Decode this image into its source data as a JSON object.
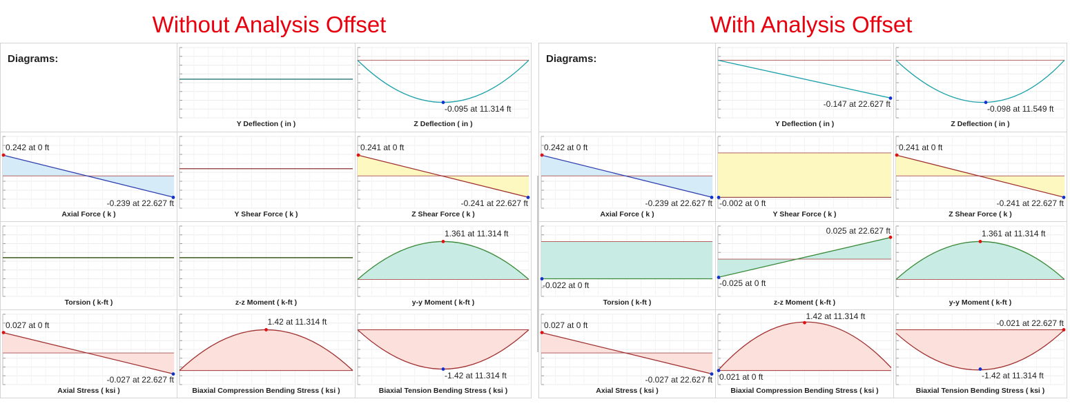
{
  "headings": {
    "left": "Without Analysis Offset",
    "right": "With Analysis Offset"
  },
  "panels": {
    "left": {
      "title": "Diagrams:",
      "cells": [
        {
          "caption": "Y Deflection ( in )",
          "type": "flat",
          "baseline": 0.5,
          "lineColor": "#3a7f7f",
          "labels": []
        },
        {
          "caption": "Z Deflection ( in )",
          "type": "curveDown",
          "lineColor": "#1aa0a8",
          "fill": "",
          "baselineColor": "#b06060",
          "labels": [
            {
              "text": "-0.095 at 11.314 ft",
              "pos": "min"
            }
          ]
        },
        {
          "caption": "Axial Force ( k )",
          "type": "linear",
          "y0": 0.242,
          "y1": -0.239,
          "lineColor": "#3040b0",
          "fill": "#d6ebf8",
          "baselineColor": "#b06060",
          "labels": [
            {
              "text": "0.242 at 0 ft",
              "pos": "startTop"
            },
            {
              "text": "-0.239 at 22.627 ft",
              "pos": "endBottom"
            }
          ]
        },
        {
          "caption": "Y Shear Force ( k )",
          "type": "flat",
          "baseline": 0.5,
          "lineColor": "#a05050",
          "labels": []
        },
        {
          "caption": "Z Shear Force ( k )",
          "type": "linear",
          "y0": 0.241,
          "y1": -0.241,
          "lineColor": "#a03030",
          "fill": "#fdf8c0",
          "baselineColor": "#b06060",
          "labels": [
            {
              "text": "0.241 at 0 ft",
              "pos": "startTop"
            },
            {
              "text": "-0.241 at 22.627 ft",
              "pos": "endBottom"
            }
          ]
        },
        {
          "caption": "Torsion ( k-ft )",
          "type": "flat",
          "baseline": 0.5,
          "lineColor": "#3a5a1a",
          "labels": []
        },
        {
          "caption": "z-z Moment ( k-ft )",
          "type": "flat",
          "baseline": 0.5,
          "lineColor": "#3a5a1a",
          "labels": []
        },
        {
          "caption": "y-y Moment ( k-ft )",
          "type": "arcUp",
          "lineColor": "#3a8a3a",
          "fill": "#c8ebe4",
          "baselineColor": "#b06060",
          "labels": [
            {
              "text": "1.361 at 11.314 ft",
              "pos": "maxTop"
            }
          ]
        },
        {
          "caption": "Axial Stress ( ksi )",
          "type": "linear",
          "y0": 0.027,
          "y1": -0.027,
          "lineColor": "#a03030",
          "fill": "#fbe0dc",
          "baselineColor": "#b06060",
          "labels": [
            {
              "text": "0.027 at 0 ft",
              "pos": "startTop"
            },
            {
              "text": "-0.027 at 22.627 ft",
              "pos": "endBottom"
            }
          ]
        },
        {
          "caption": "Biaxial Compression Bending Stress ( ksi )",
          "type": "arcUpBase",
          "lineColor": "#a03030",
          "fill": "#fbe0dc",
          "baselineColor": "#a03030",
          "labels": [
            {
              "text": "1.42 at 11.314 ft",
              "pos": "maxTop"
            }
          ]
        },
        {
          "caption": "Biaxial Tension Bending Stress ( ksi )",
          "type": "arcDownTop",
          "lineColor": "#a03030",
          "fill": "#fbe0dc",
          "baselineColor": "#a03030",
          "labels": [
            {
              "text": "-1.42 at 11.314 ft",
              "pos": "min"
            }
          ]
        }
      ]
    },
    "right": {
      "title": "Diagrams:",
      "cells": [
        {
          "caption": "Y Deflection ( in )",
          "type": "linearNoFill",
          "lineColor": "#1aa0a8",
          "baselineColor": "#b06060",
          "labels": [
            {
              "text": "-0.147 at 22.627 ft",
              "pos": "endBottom"
            }
          ]
        },
        {
          "caption": "Z Deflection ( in )",
          "type": "curveDown",
          "lineColor": "#1aa0a8",
          "fill": "",
          "baselineColor": "#b06060",
          "labels": [
            {
              "text": "-0.098 at 11.549 ft",
              "pos": "min"
            }
          ]
        },
        {
          "caption": "Axial Force ( k )",
          "type": "linear",
          "y0": 0.242,
          "y1": -0.239,
          "lineColor": "#3040b0",
          "fill": "#d6ebf8",
          "baselineColor": "#b06060",
          "labels": [
            {
              "text": "0.242 at 0 ft",
              "pos": "startTop"
            },
            {
              "text": "-0.239 at 22.627 ft",
              "pos": "endBottom"
            }
          ]
        },
        {
          "caption": "Y Shear Force ( k )",
          "type": "rect",
          "lineColor": "#a05050",
          "fill": "#fdf8c0",
          "baselineColor": "#b06060",
          "labels": [
            {
              "text": "-0.002 at 0 ft",
              "pos": "startBottom"
            }
          ]
        },
        {
          "caption": "Z Shear Force ( k )",
          "type": "linear",
          "y0": 0.241,
          "y1": -0.241,
          "lineColor": "#a03030",
          "fill": "#fdf8c0",
          "baselineColor": "#b06060",
          "labels": [
            {
              "text": "0.241 at 0 ft",
              "pos": "startTop"
            },
            {
              "text": "-0.241 at 22.627 ft",
              "pos": "endBottom"
            }
          ]
        },
        {
          "caption": "Torsion ( k-ft )",
          "type": "rectTorsion",
          "lineColor": "#3a8a3a",
          "fill": "#c8ebe4",
          "baselineColor": "#b06060",
          "labels": [
            {
              "text": "-0.022 at 0 ft",
              "pos": "startBottom"
            }
          ]
        },
        {
          "caption": "z-z Moment ( k-ft )",
          "type": "linearUp",
          "lineColor": "#3a8a3a",
          "fill": "#c8ebe4",
          "baselineColor": "#b06060",
          "labels": [
            {
              "text": "0.025 at 22.627 ft",
              "pos": "endTop"
            },
            {
              "text": "-0.025 at 0 ft",
              "pos": "startBottom"
            }
          ]
        },
        {
          "caption": "y-y Moment ( k-ft )",
          "type": "arcUp",
          "lineColor": "#3a8a3a",
          "fill": "#c8ebe4",
          "baselineColor": "#b06060",
          "labels": [
            {
              "text": "1.361 at 11.314 ft",
              "pos": "maxTop"
            }
          ]
        },
        {
          "caption": "Axial Stress ( ksi )",
          "type": "linear",
          "y0": 0.027,
          "y1": -0.027,
          "lineColor": "#a03030",
          "fill": "#fbe0dc",
          "baselineColor": "#b06060",
          "labels": [
            {
              "text": "0.027 at 0 ft",
              "pos": "startTop"
            },
            {
              "text": "-0.027 at 22.627 ft",
              "pos": "endBottom"
            }
          ]
        },
        {
          "caption": "Biaxial Compression Bending Stress ( ksi )",
          "type": "arcUpBaseOffset",
          "lineColor": "#a03030",
          "fill": "#fbe0dc",
          "baselineColor": "#a03030",
          "labels": [
            {
              "text": "1.42 at 11.314 ft",
              "pos": "maxTop"
            },
            {
              "text": "0.021 at 0 ft",
              "pos": "startBottom"
            }
          ]
        },
        {
          "caption": "Biaxial Tension Bending Stress ( ksi )",
          "type": "arcDownTopOffset",
          "lineColor": "#a03030",
          "fill": "#fbe0dc",
          "baselineColor": "#a03030",
          "labels": [
            {
              "text": "-0.021 at 22.627 ft",
              "pos": "endTop"
            },
            {
              "text": "-1.42 at 11.314 ft",
              "pos": "min"
            }
          ]
        }
      ]
    }
  }
}
